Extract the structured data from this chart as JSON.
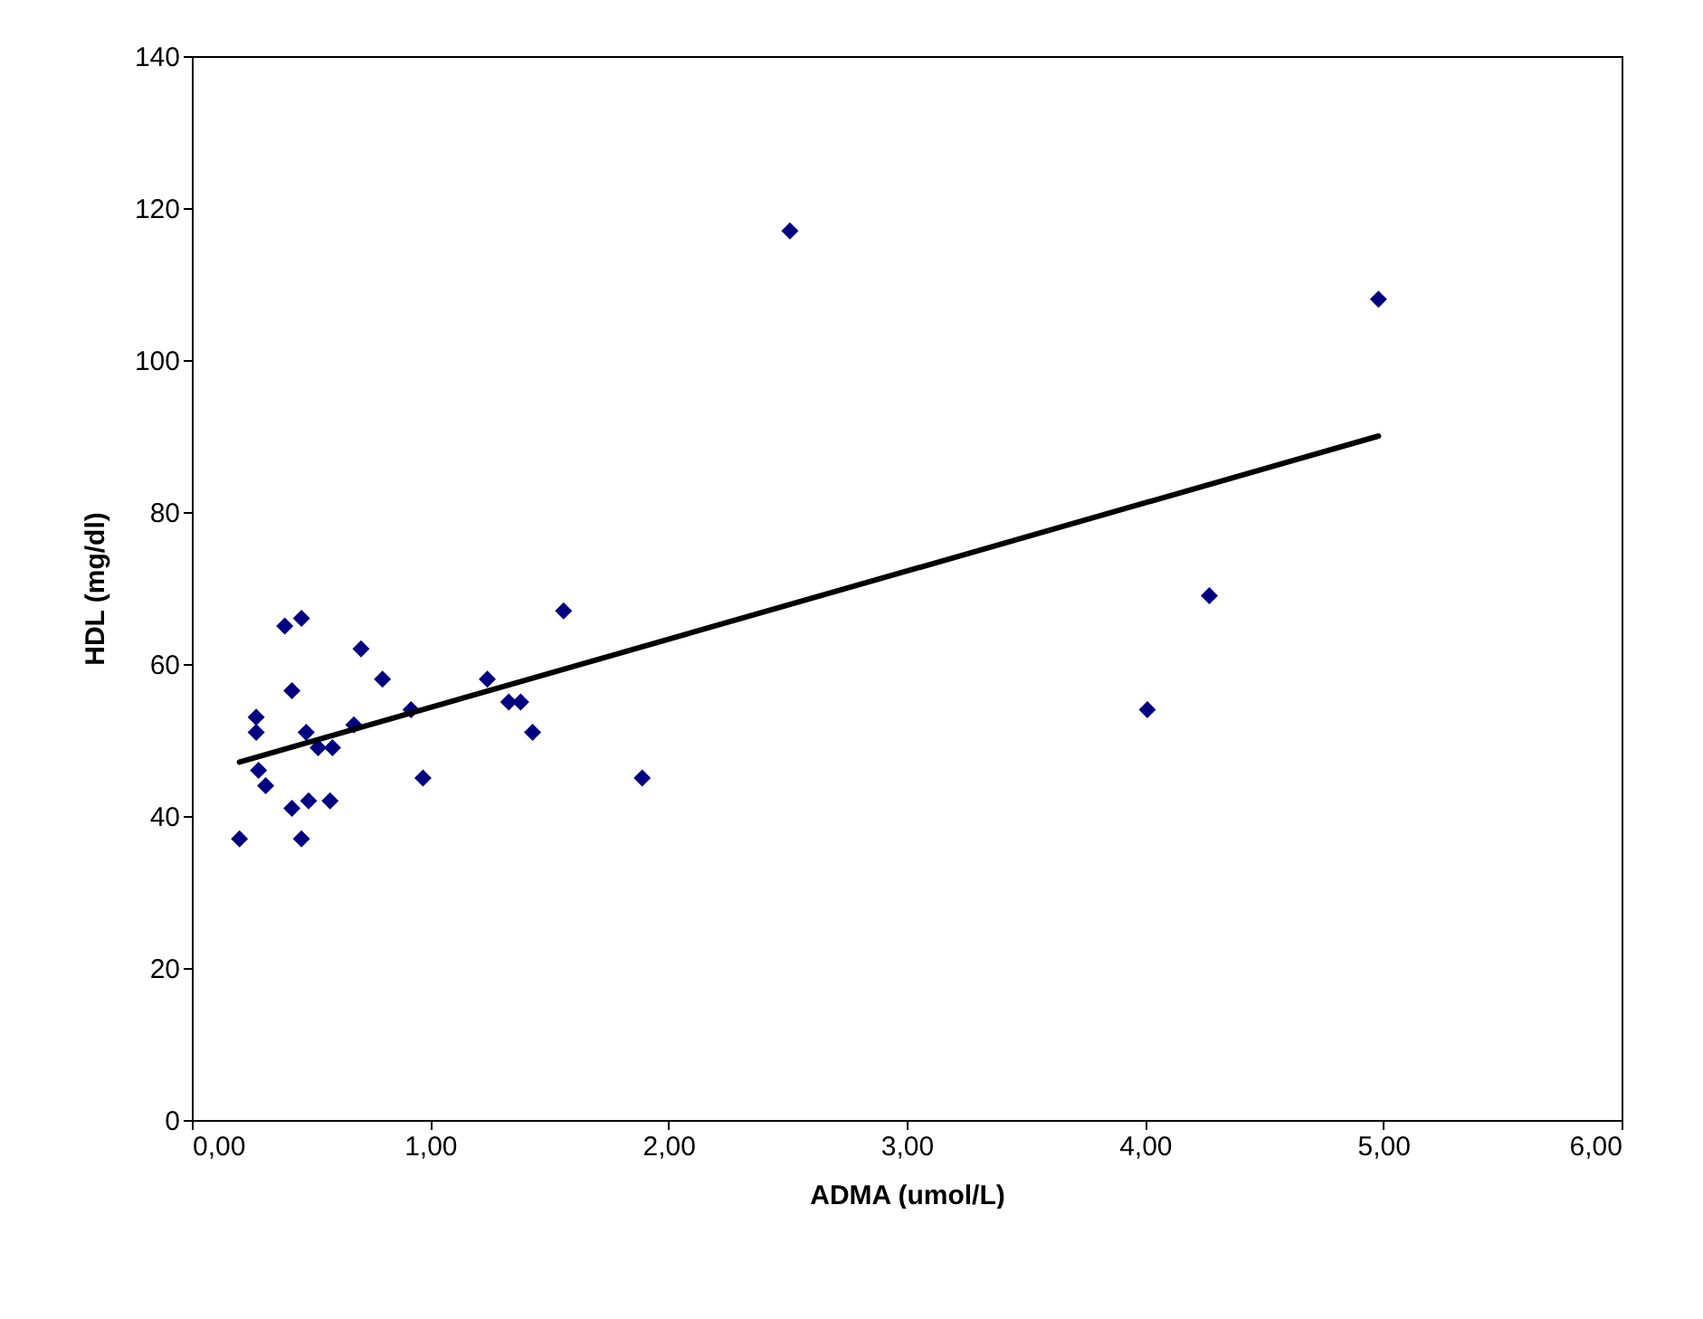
{
  "chart_data": {
    "type": "scatter",
    "xlabel": "ADMA (umol/L)",
    "ylabel": "HDL (mg/dl)",
    "marker": "diamond",
    "grid": false,
    "xlim": [
      0,
      6
    ],
    "ylim": [
      0,
      140
    ],
    "xticks": [
      {
        "value": 0,
        "label": "0,00"
      },
      {
        "value": 1,
        "label": "1,00"
      },
      {
        "value": 2,
        "label": "2,00"
      },
      {
        "value": 3,
        "label": "3,00"
      },
      {
        "value": 4,
        "label": "4,00"
      },
      {
        "value": 5,
        "label": "5,00"
      },
      {
        "value": 6,
        "label": "6,00"
      }
    ],
    "yticks": [
      0,
      20,
      40,
      60,
      80,
      100,
      120,
      140
    ],
    "series": [
      {
        "color": "#000080",
        "x": [
          0.2,
          0.27,
          0.27,
          0.28,
          0.31,
          0.39,
          0.46,
          0.42,
          0.42,
          0.46,
          0.48,
          0.49,
          0.53,
          0.59,
          0.58,
          0.68,
          0.71,
          0.8,
          0.92,
          0.97,
          1.24,
          1.33,
          1.38,
          1.43,
          1.56,
          1.89,
          2.51,
          4.01,
          4.27,
          4.98
        ],
        "values": [
          37,
          53,
          51,
          46,
          44,
          65,
          66,
          56.5,
          41,
          37,
          51,
          42,
          49,
          49,
          42,
          52,
          62,
          58,
          54,
          45,
          58,
          55,
          55,
          51,
          67,
          45,
          117,
          54,
          69,
          108
        ]
      },
      {
        "type": "line",
        "marker": "none",
        "color": "#000000",
        "x": [
          0.2,
          4.98
        ],
        "values": [
          47.1,
          90
        ]
      }
    ]
  }
}
